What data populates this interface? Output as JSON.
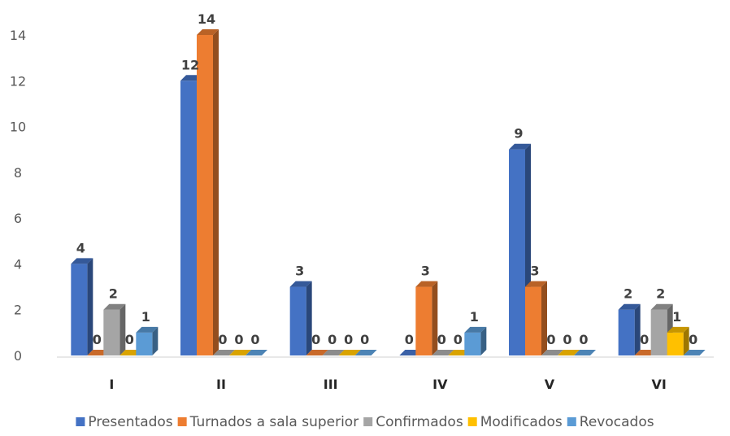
{
  "chart_data": {
    "type": "bar",
    "style": "3d-clustered-column",
    "categories": [
      "I",
      "II",
      "III",
      "IV",
      "V",
      "VI"
    ],
    "series": [
      {
        "name": "Presentados",
        "color": "#4472C4",
        "values": [
          4,
          12,
          3,
          0,
          9,
          2
        ]
      },
      {
        "name": "Turnados a sala superior",
        "color": "#ED7D31",
        "values": [
          0,
          14,
          0,
          3,
          3,
          0
        ]
      },
      {
        "name": "Confirmados",
        "color": "#A5A5A5",
        "values": [
          2,
          0,
          0,
          0,
          0,
          2
        ]
      },
      {
        "name": "Modificados",
        "color": "#FFC000",
        "values": [
          0,
          0,
          0,
          0,
          0,
          1
        ]
      },
      {
        "name": "Revocados",
        "color": "#5B9BD5",
        "values": [
          1,
          0,
          0,
          1,
          0,
          0
        ]
      }
    ],
    "ylim": [
      0,
      14
    ],
    "yticks": [
      0,
      2,
      4,
      6,
      8,
      10,
      12,
      14
    ],
    "grid": false,
    "legend_position": "bottom",
    "data_labels": true
  }
}
